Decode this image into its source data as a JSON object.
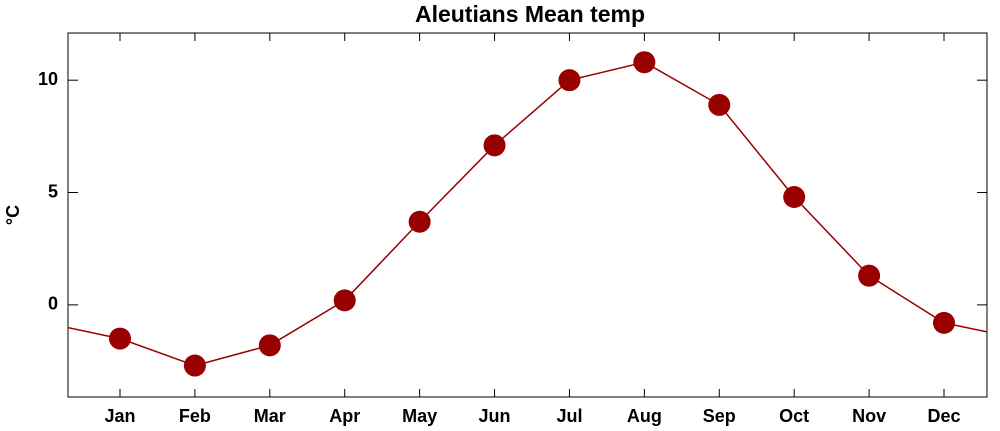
{
  "chart_data": {
    "type": "line",
    "title": "Aleutians Mean temp",
    "y_label": "°C",
    "categories": [
      "Jan",
      "Feb",
      "Mar",
      "Apr",
      "May",
      "Jun",
      "Jul",
      "Aug",
      "Sep",
      "Oct",
      "Nov",
      "Dec"
    ],
    "values": [
      -1.5,
      -2.7,
      -1.8,
      0.2,
      3.7,
      7.1,
      10.0,
      10.8,
      8.9,
      4.8,
      1.3,
      -0.8
    ],
    "color": "#990000",
    "ylim": [
      -4.1,
      12.1
    ],
    "yticks": [
      0,
      5,
      10
    ],
    "grid": false
  }
}
